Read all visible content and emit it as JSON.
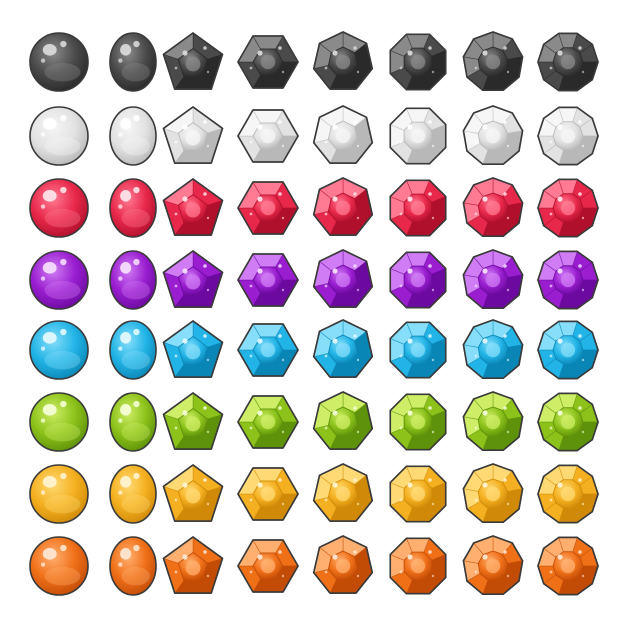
{
  "sheet": {
    "background": "#ffffff",
    "outline_color": "#3a3a3a",
    "shapes": [
      "round",
      "oval",
      "pentagon",
      "hexagon",
      "heptagon",
      "octagon",
      "nonagon",
      "decagon"
    ],
    "colors": [
      {
        "name": "black",
        "base": "#4a4a4a",
        "light": "#8a8a8a",
        "dark": "#2a2a2a",
        "highlight": "#d8d8d8"
      },
      {
        "name": "white",
        "base": "#e2e2e2",
        "light": "#f6f6f6",
        "dark": "#b8b8b8",
        "highlight": "#ffffff"
      },
      {
        "name": "red",
        "base": "#e8284a",
        "light": "#ff7a92",
        "dark": "#b0102c",
        "highlight": "#ffe2e8"
      },
      {
        "name": "purple",
        "base": "#9a1ed0",
        "light": "#d07cf4",
        "dark": "#6c0aa0",
        "highlight": "#f4dcff"
      },
      {
        "name": "blue",
        "base": "#22b4e6",
        "light": "#86defa",
        "dark": "#0a86b6",
        "highlight": "#e2f8ff"
      },
      {
        "name": "green",
        "base": "#8cc21a",
        "light": "#cdee66",
        "dark": "#5e920a",
        "highlight": "#f4ffd6"
      },
      {
        "name": "yellow",
        "base": "#f4b020",
        "light": "#ffda74",
        "dark": "#d08a08",
        "highlight": "#fff3d2"
      },
      {
        "name": "orange",
        "base": "#f07018",
        "light": "#ffb070",
        "dark": "#c24c06",
        "highlight": "#ffe6d2"
      }
    ]
  }
}
